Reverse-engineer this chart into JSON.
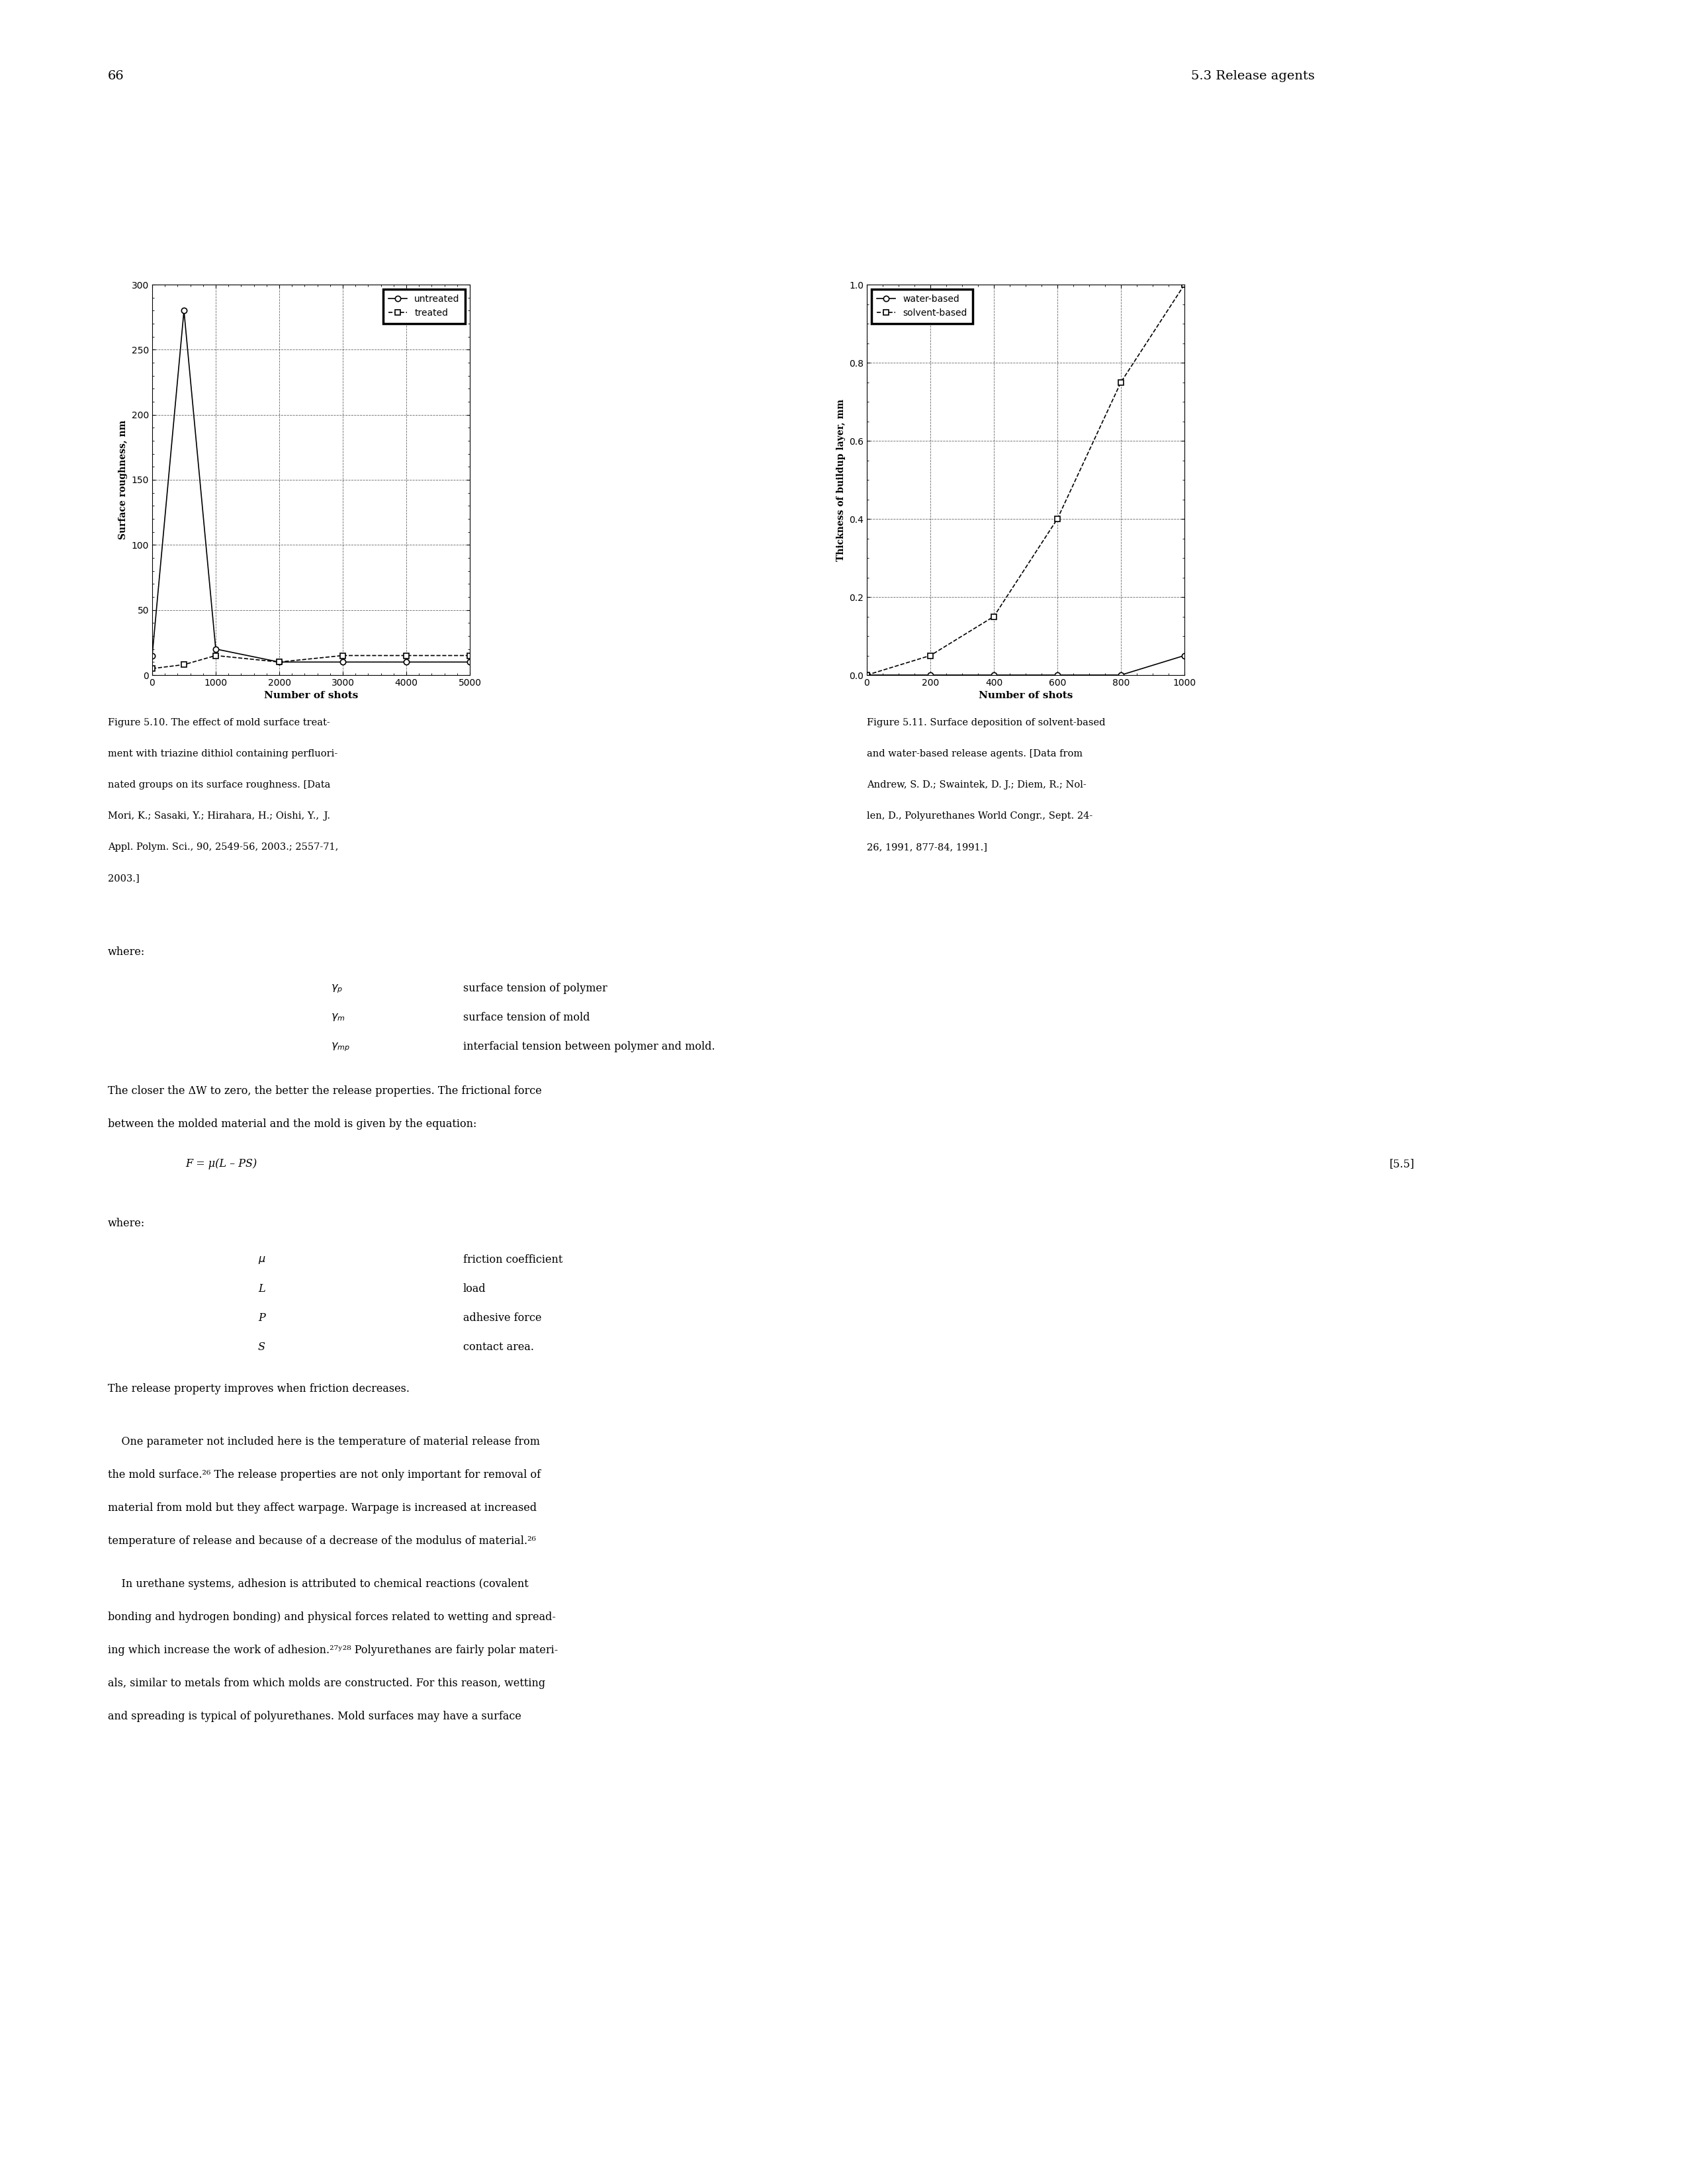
{
  "page_number": "66",
  "header_right": "5.3 Release agents",
  "fig1": {
    "xlabel": "Number of shots",
    "ylabel": "Surface roughness, nm",
    "xlim": [
      0,
      5000
    ],
    "ylim": [
      0,
      300
    ],
    "xticks": [
      0,
      1000,
      2000,
      3000,
      4000,
      5000
    ],
    "yticks": [
      0,
      50,
      100,
      150,
      200,
      250,
      300
    ],
    "untreated_x": [
      0,
      500,
      1000,
      2000,
      3000,
      4000,
      5000
    ],
    "untreated_y": [
      15,
      280,
      20,
      10,
      10,
      10,
      10
    ],
    "treated_x": [
      0,
      500,
      1000,
      2000,
      3000,
      4000,
      5000
    ],
    "treated_y": [
      5,
      8,
      15,
      10,
      15,
      15,
      15
    ],
    "legend_untreated": "untreated",
    "legend_treated": "treated"
  },
  "fig2": {
    "xlabel": "Number of shots",
    "ylabel": "Thickness of buildup layer, mm",
    "xlim": [
      0,
      1000
    ],
    "ylim": [
      0,
      1.0
    ],
    "xticks": [
      0,
      200,
      400,
      600,
      800,
      1000
    ],
    "yticks": [
      0,
      0.2,
      0.4,
      0.6,
      0.8,
      1.0
    ],
    "waterbased_x": [
      0,
      200,
      400,
      600,
      800,
      1000
    ],
    "waterbased_y": [
      0,
      0.0,
      0.0,
      0.0,
      0.0,
      0.05
    ],
    "solventbased_x": [
      0,
      200,
      400,
      600,
      800,
      1000
    ],
    "solventbased_y": [
      0,
      0.05,
      0.15,
      0.4,
      0.75,
      1.0
    ],
    "legend_waterbased": "water-based",
    "legend_solventbased": "solvent-based"
  },
  "caption1_line1": "Figure 5.10. The effect of mold surface treat-",
  "caption1_line2": "ment with triazine dithiol containing perfluori-",
  "caption1_line3": "nated groups on its surface roughness. [Data",
  "caption1_line4": "Mori, K.; Sasaki, Y.; Hirahara, H.; Oishi, Y.,   J.",
  "caption1_line5": "Appl. Polym. Sci., 90, 2549-56, 2003.; 2557-71,",
  "caption1_line6": "2003.]",
  "caption1_line4_italic": "J.",
  "caption1_line5_bold": "90",
  "caption2_line1": "Figure 5.11. Surface deposition of solvent-based",
  "caption2_line2": "and water-based release agents. [Data from",
  "caption2_line3": "Andrew, S. D.; Swaintek, D. J.; Diem, R.; Nol-",
  "caption2_line4": "len, D., Polyurethanes World Congr., Sept. 24-",
  "caption2_line5": "26, 1991, 877-84, 1991.]",
  "where_label": "where:",
  "gamma_p_desc": "surface tension of polymer",
  "gamma_m_desc": "surface tension of mold",
  "gamma_mp_desc": "interfacial tension between polymer and mold.",
  "closer_line1": "The closer the ΔW to zero, the better the release properties. The frictional force",
  "closer_line2": "between the molded material and the mold is given by the equation:",
  "equation": "F = μ(L – PS)",
  "eq_number": "[5.5]",
  "where2_label": "where:",
  "mu_desc": "friction coefficient",
  "L_desc": "load",
  "P_desc": "adhesive force",
  "S_desc": "contact area.",
  "release_text": "The release property improves when friction decreases.",
  "body_para1_line1": "    One parameter not included here is the temperature of material release from",
  "body_para1_line2": "the mold surface.²⁶ The release properties are not only important for removal of",
  "body_para1_line3": "material from mold but they affect warpage. Warpage is increased at increased",
  "body_para1_line4": "temperature of release and because of a decrease of the modulus of material.²⁶",
  "body_para2_line1": "    In urethane systems, adhesion is attributed to chemical reactions (covalent",
  "body_para2_line2": "bonding and hydrogen bonding) and physical forces related to wetting and spread-",
  "body_para2_line3": "ing which increase the work of adhesion.²⁷ʸ²⁸ Polyurethanes are fairly polar materi-",
  "body_para2_line4": "als, similar to metals from which molds are constructed. For this reason, wetting",
  "body_para2_line5": "and spreading is typical of polyurethanes. Mold surfaces may have a surface"
}
